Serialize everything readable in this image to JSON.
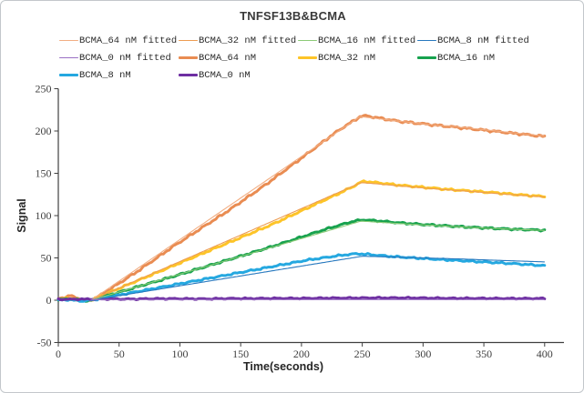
{
  "chart_data": {
    "type": "line",
    "title": "TNFSF13B&BCMA",
    "xlabel": "Time(seconds)",
    "ylabel": "Signal",
    "xlim": [
      0,
      415
    ],
    "ylim": [
      -50,
      250
    ],
    "x_ticks": [
      0,
      50,
      100,
      150,
      200,
      250,
      300,
      350,
      400
    ],
    "y_ticks": [
      -50,
      0,
      50,
      100,
      150,
      200,
      250
    ],
    "grid": false,
    "legend_position": "top",
    "axis_color": "#3f3f3f",
    "series": [
      {
        "name": "BCMA_64 nM fitted",
        "role": "fitted",
        "color": "#F2AE83",
        "noise": 0,
        "points": [
          [
            27,
            0
          ],
          [
            248,
            217
          ],
          [
            258,
            215.5
          ],
          [
            275,
            212.5
          ],
          [
            300,
            208.5
          ],
          [
            330,
            204.5
          ],
          [
            360,
            200
          ],
          [
            400,
            194
          ]
        ]
      },
      {
        "name": "BCMA_32 nM fitted",
        "role": "fitted",
        "color": "#ED9C52",
        "noise": 0,
        "points": [
          [
            27,
            0
          ],
          [
            249,
            139
          ],
          [
            262,
            137.5
          ],
          [
            285,
            134.5
          ],
          [
            310,
            131.5
          ],
          [
            340,
            128.5
          ],
          [
            370,
            125
          ],
          [
            400,
            122
          ]
        ]
      },
      {
        "name": "BCMA_16 nM fitted",
        "role": "fitted",
        "color": "#8CCB77",
        "noise": 0,
        "points": [
          [
            27,
            0
          ],
          [
            249,
            93.5
          ],
          [
            265,
            92
          ],
          [
            290,
            89.8
          ],
          [
            320,
            87.5
          ],
          [
            350,
            85.3
          ],
          [
            375,
            83.8
          ],
          [
            400,
            82.5
          ]
        ]
      },
      {
        "name": "BCMA_8 nM fitted",
        "role": "fitted",
        "color": "#2778BE",
        "noise": 0,
        "points": [
          [
            27,
            0
          ],
          [
            250,
            52
          ],
          [
            275,
            51
          ],
          [
            300,
            50
          ],
          [
            330,
            48.8
          ],
          [
            360,
            47.2
          ],
          [
            400,
            45.3
          ]
        ]
      },
      {
        "name": "BCMA_0 nM fitted",
        "role": "fitted",
        "color": "#9A6FC4",
        "noise": 0,
        "points": [
          [
            27,
            0.8
          ],
          [
            400,
            0.8
          ]
        ]
      },
      {
        "name": "BCMA_64 nM",
        "role": "raw",
        "color": "#E98C52",
        "noise": 1.4,
        "points": [
          [
            0,
            2
          ],
          [
            4,
            3
          ],
          [
            8,
            5
          ],
          [
            12,
            4.5
          ],
          [
            16,
            2.5
          ],
          [
            20,
            0.5
          ],
          [
            24,
            -0.5
          ],
          [
            28,
            0.5
          ],
          [
            36,
            7
          ],
          [
            50,
            20
          ],
          [
            65,
            34
          ],
          [
            80,
            49
          ],
          [
            95,
            64
          ],
          [
            110,
            78
          ],
          [
            125,
            92
          ],
          [
            140,
            106
          ],
          [
            155,
            121
          ],
          [
            170,
            136
          ],
          [
            185,
            152
          ],
          [
            200,
            168
          ],
          [
            212,
            181
          ],
          [
            224,
            194
          ],
          [
            235,
            205
          ],
          [
            243,
            212
          ],
          [
            248,
            217
          ],
          [
            252,
            218
          ],
          [
            257,
            217
          ],
          [
            265,
            215
          ],
          [
            280,
            211.5
          ],
          [
            300,
            208.5
          ],
          [
            320,
            205.5
          ],
          [
            340,
            202.5
          ],
          [
            360,
            199.5
          ],
          [
            380,
            196.5
          ],
          [
            400,
            193.5
          ]
        ]
      },
      {
        "name": "BCMA_32 nM",
        "role": "raw",
        "color": "#FDC428",
        "noise": 1.2,
        "points": [
          [
            0,
            1
          ],
          [
            6,
            2
          ],
          [
            12,
            1.5
          ],
          [
            18,
            0.5
          ],
          [
            24,
            -0.5
          ],
          [
            28,
            0.5
          ],
          [
            40,
            8
          ],
          [
            55,
            17
          ],
          [
            70,
            26
          ],
          [
            85,
            35
          ],
          [
            100,
            44
          ],
          [
            115,
            53
          ],
          [
            130,
            62
          ],
          [
            145,
            71
          ],
          [
            160,
            80
          ],
          [
            175,
            89
          ],
          [
            190,
            99
          ],
          [
            205,
            109
          ],
          [
            220,
            119
          ],
          [
            232,
            127
          ],
          [
            242,
            134
          ],
          [
            248,
            139
          ],
          [
            252,
            140.5
          ],
          [
            258,
            139.5
          ],
          [
            268,
            138
          ],
          [
            280,
            136
          ],
          [
            300,
            133.5
          ],
          [
            320,
            131
          ],
          [
            340,
            129
          ],
          [
            360,
            127
          ],
          [
            380,
            124.5
          ],
          [
            400,
            122.5
          ]
        ]
      },
      {
        "name": "BCMA_16 nM",
        "role": "raw",
        "color": "#17A24E",
        "noise": 1.1,
        "points": [
          [
            0,
            0.5
          ],
          [
            8,
            1.5
          ],
          [
            16,
            0.5
          ],
          [
            24,
            -0.5
          ],
          [
            28,
            0.5
          ],
          [
            40,
            5.5
          ],
          [
            55,
            11.5
          ],
          [
            70,
            18
          ],
          [
            85,
            24
          ],
          [
            100,
            30.5
          ],
          [
            115,
            37
          ],
          [
            130,
            43.5
          ],
          [
            145,
            50
          ],
          [
            160,
            56.5
          ],
          [
            175,
            63
          ],
          [
            190,
            70
          ],
          [
            205,
            77
          ],
          [
            220,
            84
          ],
          [
            232,
            89
          ],
          [
            242,
            93
          ],
          [
            250,
            95
          ],
          [
            256,
            94.5
          ],
          [
            265,
            93.5
          ],
          [
            280,
            91.5
          ],
          [
            300,
            89.5
          ],
          [
            320,
            87.8
          ],
          [
            340,
            86.2
          ],
          [
            360,
            84.8
          ],
          [
            380,
            83.6
          ],
          [
            400,
            82.8
          ]
        ]
      },
      {
        "name": "BCMA_8 nM",
        "role": "raw",
        "color": "#25A8E0",
        "noise": 1.1,
        "points": [
          [
            0,
            0
          ],
          [
            8,
            0.8
          ],
          [
            14,
            -0.3
          ],
          [
            20,
            -1
          ],
          [
            27,
            0
          ],
          [
            40,
            3.5
          ],
          [
            55,
            7.5
          ],
          [
            70,
            11.5
          ],
          [
            85,
            15.5
          ],
          [
            100,
            19.5
          ],
          [
            115,
            23.5
          ],
          [
            130,
            27.5
          ],
          [
            145,
            31.5
          ],
          [
            160,
            35.5
          ],
          [
            175,
            39.5
          ],
          [
            190,
            43.5
          ],
          [
            205,
            47.5
          ],
          [
            220,
            50.5
          ],
          [
            232,
            53
          ],
          [
            242,
            54.5
          ],
          [
            247,
            55
          ],
          [
            253,
            54.3
          ],
          [
            262,
            53.2
          ],
          [
            275,
            51.6
          ],
          [
            290,
            50.2
          ],
          [
            305,
            48.9
          ],
          [
            320,
            47.6
          ],
          [
            340,
            46
          ],
          [
            360,
            44.4
          ],
          [
            380,
            42.7
          ],
          [
            400,
            40.8
          ]
        ]
      },
      {
        "name": "BCMA_0 nM",
        "role": "raw",
        "color": "#6E2FA2",
        "noise": 0.9,
        "points": [
          [
            0,
            1
          ],
          [
            20,
            1.2
          ],
          [
            40,
            1.5
          ],
          [
            60,
            1.3
          ],
          [
            80,
            1.8
          ],
          [
            100,
            1.8
          ],
          [
            120,
            1.5
          ],
          [
            140,
            2
          ],
          [
            160,
            2
          ],
          [
            180,
            2.2
          ],
          [
            200,
            2.2
          ],
          [
            220,
            2.5
          ],
          [
            240,
            2.6
          ],
          [
            260,
            2.8
          ],
          [
            280,
            2.8
          ],
          [
            300,
            2.6
          ],
          [
            320,
            2.3
          ],
          [
            340,
            2.2
          ],
          [
            360,
            2.1
          ],
          [
            380,
            2
          ],
          [
            400,
            2
          ]
        ]
      }
    ]
  }
}
